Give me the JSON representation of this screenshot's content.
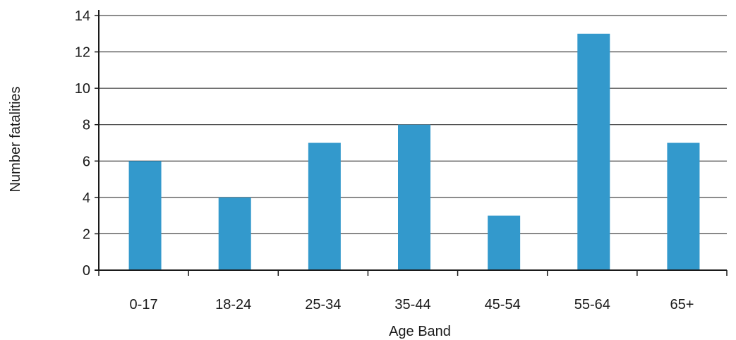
{
  "chart_data": {
    "type": "bar",
    "title": "",
    "xlabel": "Age Band",
    "ylabel": "Number fatalities",
    "categories": [
      "0-17",
      "18-24",
      "25-34",
      "35-44",
      "45-54",
      "55-64",
      "65+"
    ],
    "values": [
      6,
      4,
      7,
      8,
      3,
      13,
      7
    ],
    "ylim": [
      0,
      14
    ],
    "yticks": [
      "0",
      "2",
      "4",
      "6",
      "8",
      "10",
      "12",
      "14"
    ],
    "grid": "horizontal",
    "legend": "none",
    "bar_color": "#3399cc",
    "axis_color": "#1a1a1a"
  }
}
